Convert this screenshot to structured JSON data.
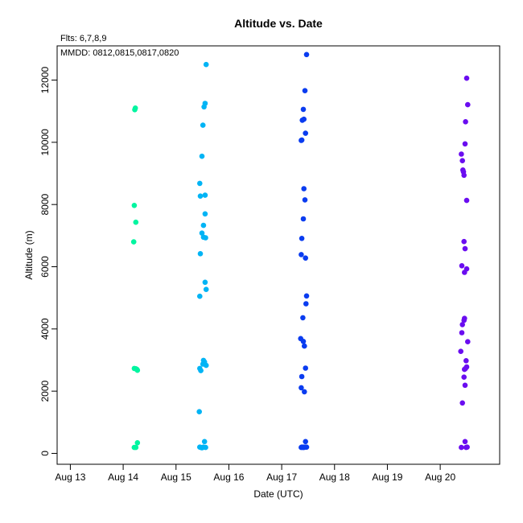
{
  "chart_data": {
    "type": "scatter",
    "title": "Altitude  vs. Date",
    "subtitle": "Flts: 6,7,8,9",
    "annotation": "MMDD: 0812,0815,0817,0820",
    "xlabel": "Date (UTC)",
    "ylabel": "Altitude (m)",
    "xlim": [
      "2023-08-12T18:00",
      "2023-08-21T03:00"
    ],
    "ylim": [
      -350,
      13100
    ],
    "xticks": [
      {
        "x": "2023-08-13T00:00",
        "label": "Aug 13"
      },
      {
        "x": "2023-08-14T00:00",
        "label": "Aug 14"
      },
      {
        "x": "2023-08-15T00:00",
        "label": "Aug 15"
      },
      {
        "x": "2023-08-16T00:00",
        "label": "Aug 16"
      },
      {
        "x": "2023-08-17T00:00",
        "label": "Aug 17"
      },
      {
        "x": "2023-08-18T00:00",
        "label": "Aug 18"
      },
      {
        "x": "2023-08-19T00:00",
        "label": "Aug 19"
      },
      {
        "x": "2023-08-20T00:00",
        "label": "Aug 20"
      }
    ],
    "yticks": [
      0,
      2000,
      4000,
      6000,
      8000,
      10000,
      12000
    ],
    "grid": false,
    "series": [
      {
        "color": "#00f5a0",
        "points": [
          {
            "x": "2023-08-14T04:48",
            "y": 6800
          },
          {
            "x": "2023-08-14T05:02",
            "y": 7970
          },
          {
            "x": "2023-08-14T05:02",
            "y": 2730
          },
          {
            "x": "2023-08-14T05:02",
            "y": 190
          },
          {
            "x": "2023-08-14T05:16",
            "y": 11050
          },
          {
            "x": "2023-08-14T05:31",
            "y": 11100
          },
          {
            "x": "2023-08-14T05:45",
            "y": 7430
          },
          {
            "x": "2023-08-14T05:45",
            "y": 2720
          },
          {
            "x": "2023-08-14T05:45",
            "y": 190
          },
          {
            "x": "2023-08-14T06:14",
            "y": 2700
          },
          {
            "x": "2023-08-14T06:29",
            "y": 2670
          },
          {
            "x": "2023-08-14T06:29",
            "y": 340
          }
        ]
      },
      {
        "color": "#00b4f5",
        "points": [
          {
            "x": "2023-08-15T10:34",
            "y": 1340
          },
          {
            "x": "2023-08-15T10:48",
            "y": 8680
          },
          {
            "x": "2023-08-15T10:48",
            "y": 5050
          },
          {
            "x": "2023-08-15T10:48",
            "y": 2730
          },
          {
            "x": "2023-08-15T10:48",
            "y": 200
          },
          {
            "x": "2023-08-15T11:02",
            "y": 8270
          },
          {
            "x": "2023-08-15T11:02",
            "y": 6420
          },
          {
            "x": "2023-08-15T11:17",
            "y": 2660
          },
          {
            "x": "2023-08-15T11:17",
            "y": 190
          },
          {
            "x": "2023-08-15T11:46",
            "y": 9550
          },
          {
            "x": "2023-08-15T11:46",
            "y": 7080
          },
          {
            "x": "2023-08-15T11:46",
            "y": 180
          },
          {
            "x": "2023-08-15T12:14",
            "y": 10550
          },
          {
            "x": "2023-08-15T12:14",
            "y": 2870
          },
          {
            "x": "2023-08-15T12:29",
            "y": 7330
          },
          {
            "x": "2023-08-15T12:29",
            "y": 6950
          },
          {
            "x": "2023-08-15T12:29",
            "y": 2990
          },
          {
            "x": "2023-08-15T12:29",
            "y": 200
          },
          {
            "x": "2023-08-15T12:43",
            "y": 11140
          },
          {
            "x": "2023-08-15T12:58",
            "y": 2940
          },
          {
            "x": "2023-08-15T12:58",
            "y": 380
          },
          {
            "x": "2023-08-15T13:12",
            "y": 11250
          },
          {
            "x": "2023-08-15T13:12",
            "y": 8300
          },
          {
            "x": "2023-08-15T13:12",
            "y": 7700
          },
          {
            "x": "2023-08-15T13:12",
            "y": 5500
          },
          {
            "x": "2023-08-15T13:26",
            "y": 6930
          },
          {
            "x": "2023-08-15T13:26",
            "y": 190
          },
          {
            "x": "2023-08-15T13:41",
            "y": 12500
          },
          {
            "x": "2023-08-15T13:41",
            "y": 5270
          },
          {
            "x": "2023-08-15T13:41",
            "y": 2830
          }
        ]
      },
      {
        "color": "#0a3cf0",
        "points": [
          {
            "x": "2023-08-17T08:38",
            "y": 3690
          },
          {
            "x": "2023-08-17T08:53",
            "y": 10060
          },
          {
            "x": "2023-08-17T08:53",
            "y": 6390
          },
          {
            "x": "2023-08-17T08:53",
            "y": 2110
          },
          {
            "x": "2023-08-17T08:53",
            "y": 190
          },
          {
            "x": "2023-08-17T09:07",
            "y": 10070
          },
          {
            "x": "2023-08-17T09:07",
            "y": 6910
          },
          {
            "x": "2023-08-17T09:07",
            "y": 2470
          },
          {
            "x": "2023-08-17T09:07",
            "y": 200
          },
          {
            "x": "2023-08-17T09:22",
            "y": 10710
          },
          {
            "x": "2023-08-17T09:36",
            "y": 4360
          },
          {
            "x": "2023-08-17T09:36",
            "y": 190
          },
          {
            "x": "2023-08-17T09:50",
            "y": 11060
          },
          {
            "x": "2023-08-17T09:50",
            "y": 7540
          },
          {
            "x": "2023-08-17T09:50",
            "y": 3600
          },
          {
            "x": "2023-08-17T09:50",
            "y": 200
          },
          {
            "x": "2023-08-17T10:05",
            "y": 10740
          },
          {
            "x": "2023-08-17T10:05",
            "y": 8510
          },
          {
            "x": "2023-08-17T10:05",
            "y": 190
          },
          {
            "x": "2023-08-17T10:19",
            "y": 3450
          },
          {
            "x": "2023-08-17T10:19",
            "y": 1980
          },
          {
            "x": "2023-08-17T10:34",
            "y": 11660
          },
          {
            "x": "2023-08-17T10:34",
            "y": 8150
          },
          {
            "x": "2023-08-17T10:34",
            "y": 200
          },
          {
            "x": "2023-08-17T10:48",
            "y": 10290
          },
          {
            "x": "2023-08-17T10:48",
            "y": 6280
          },
          {
            "x": "2023-08-17T10:48",
            "y": 2740
          },
          {
            "x": "2023-08-17T10:48",
            "y": 380
          },
          {
            "x": "2023-08-17T11:02",
            "y": 4810
          },
          {
            "x": "2023-08-17T11:17",
            "y": 12820
          },
          {
            "x": "2023-08-17T11:17",
            "y": 5060
          },
          {
            "x": "2023-08-17T11:17",
            "y": 200
          }
        ]
      },
      {
        "color": "#6a0df0",
        "points": [
          {
            "x": "2023-08-20T09:22",
            "y": 3280
          },
          {
            "x": "2023-08-20T09:36",
            "y": 9620
          },
          {
            "x": "2023-08-20T09:36",
            "y": 190
          },
          {
            "x": "2023-08-20T09:50",
            "y": 6030
          },
          {
            "x": "2023-08-20T09:50",
            "y": 3880
          },
          {
            "x": "2023-08-20T10:05",
            "y": 9410
          },
          {
            "x": "2023-08-20T10:05",
            "y": 4140
          },
          {
            "x": "2023-08-20T10:05",
            "y": 1620
          },
          {
            "x": "2023-08-20T10:19",
            "y": 9110
          },
          {
            "x": "2023-08-20T10:34",
            "y": 9050
          },
          {
            "x": "2023-08-20T10:48",
            "y": 8940
          },
          {
            "x": "2023-08-20T10:48",
            "y": 6810
          },
          {
            "x": "2023-08-20T10:48",
            "y": 4280
          },
          {
            "x": "2023-08-20T10:48",
            "y": 2450
          },
          {
            "x": "2023-08-20T11:02",
            "y": 5820
          },
          {
            "x": "2023-08-20T11:02",
            "y": 4340
          },
          {
            "x": "2023-08-20T11:02",
            "y": 2700
          },
          {
            "x": "2023-08-20T11:17",
            "y": 9950
          },
          {
            "x": "2023-08-20T11:17",
            "y": 6580
          },
          {
            "x": "2023-08-20T11:17",
            "y": 2190
          },
          {
            "x": "2023-08-20T11:17",
            "y": 380
          },
          {
            "x": "2023-08-20T11:31",
            "y": 10660
          },
          {
            "x": "2023-08-20T11:31",
            "y": 2730
          },
          {
            "x": "2023-08-20T11:46",
            "y": 2980
          },
          {
            "x": "2023-08-20T11:46",
            "y": 190
          },
          {
            "x": "2023-08-20T12:00",
            "y": 12060
          },
          {
            "x": "2023-08-20T12:00",
            "y": 8130
          },
          {
            "x": "2023-08-20T12:00",
            "y": 5930
          },
          {
            "x": "2023-08-20T12:00",
            "y": 2780
          },
          {
            "x": "2023-08-20T12:14",
            "y": 200
          },
          {
            "x": "2023-08-20T12:29",
            "y": 11210
          },
          {
            "x": "2023-08-20T12:29",
            "y": 3590
          }
        ]
      }
    ]
  }
}
